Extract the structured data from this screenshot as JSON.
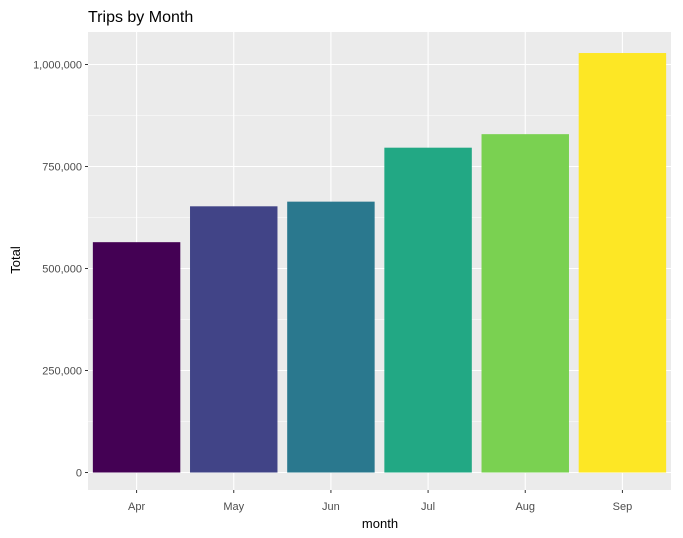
{
  "chart_data": {
    "type": "bar",
    "title": "Trips by Month",
    "xlabel": "month",
    "ylabel": "Total",
    "categories": [
      "Apr",
      "May",
      "Jun",
      "Jul",
      "Aug",
      "Sep"
    ],
    "values": [
      564516,
      652435,
      663844,
      796121,
      829275,
      1028136
    ],
    "colors": [
      "#440154",
      "#414487",
      "#2A788E",
      "#22A884",
      "#7AD151",
      "#FDE725"
    ],
    "ylim": [
      0,
      1080000
    ],
    "yticks": [
      0,
      250000,
      500000,
      750000,
      1000000
    ],
    "ytick_labels": [
      "0",
      "250,000",
      "500,000",
      "750,000",
      "1,000,000"
    ],
    "grid": true,
    "legend": "none",
    "panel_color": "#EBEBEB",
    "grid_color": "#FFFFFF"
  }
}
